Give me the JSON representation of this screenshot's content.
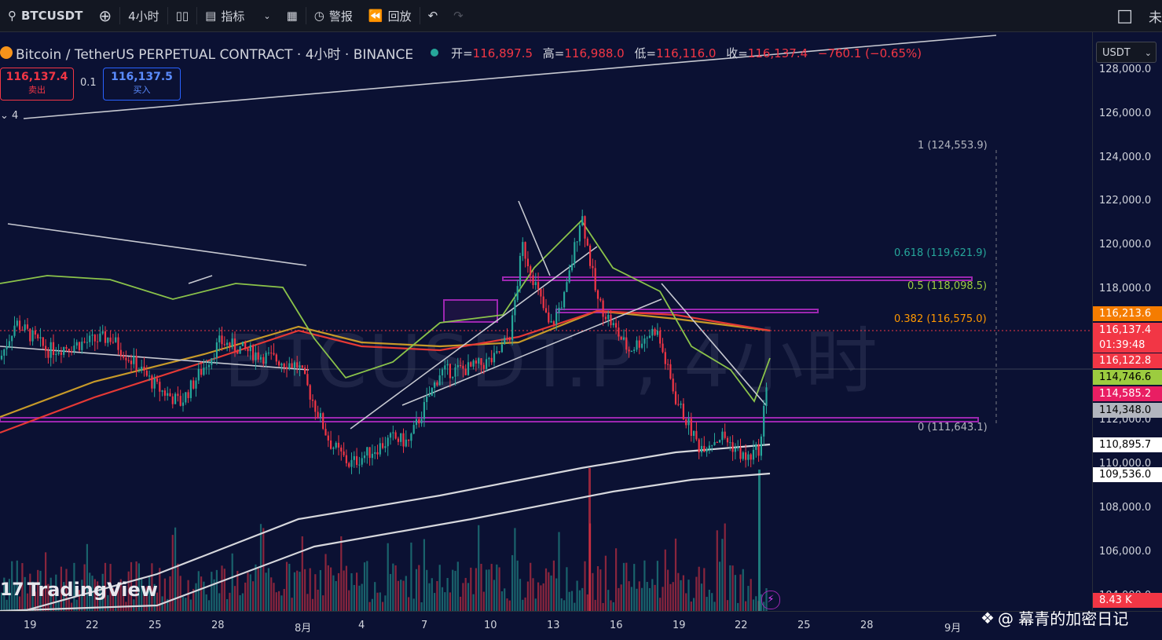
{
  "toolbar": {
    "symbol": "BTCUSDT",
    "interval": "4小时",
    "indicators_label": "指标",
    "alert_label": "警报",
    "replay_label": "回放",
    "right_label": "未"
  },
  "legend": {
    "title": "Bitcoin / TetherUS PERPETUAL CONTRACT · 4小时 · BINANCE",
    "open_label": "开=",
    "open": "116,897.5",
    "high_label": "高=",
    "high": "116,988.0",
    "low_label": "低=",
    "low": "116,116.0",
    "close_label": "收=",
    "close": "116,137.4",
    "change": "−760.1 (−0.65%)"
  },
  "trade": {
    "sell_price": "116,137.4",
    "sell_label": "卖出",
    "spread": "0.1",
    "buy_price": "116,137.5",
    "buy_label": "买入"
  },
  "collapsed_count": "4",
  "currency_select": "USDT",
  "price_ticks": [
    "128,000.0",
    "126,000.0",
    "124,000.0",
    "122,000.0",
    "120,000.0",
    "118,000.0",
    "116,000.0",
    "114,000.0",
    "112,000.0",
    "110,000.0",
    "108,000.0",
    "106,000.0",
    "104,000.0"
  ],
  "price_tags": [
    {
      "value": "116,213.6",
      "color": "#f57c00"
    },
    {
      "value": "116,137.4",
      "color": "#f23645"
    },
    {
      "value": "01:39:48",
      "color": "#f23645"
    },
    {
      "value": "116,122.8",
      "color": "#f23645"
    },
    {
      "value": "114,746.6",
      "color": "#9ccc3f"
    },
    {
      "value": "114,585.2",
      "color": "#e91e63"
    },
    {
      "value": "114,348.0",
      "color": "#787b86"
    },
    {
      "value": "110,895.7",
      "color": "#ffffff"
    },
    {
      "value": "109,536.0",
      "color": "#ffffff"
    },
    {
      "value": "8.43 K",
      "color": "#f23645"
    }
  ],
  "fib_levels": [
    {
      "label": "1 (124,553.9)",
      "color": "#b2b5be"
    },
    {
      "label": "0.618 (119,621.9)",
      "color": "#26a69a"
    },
    {
      "label": "0.5 (118,098.5)",
      "color": "#9ccc3f"
    },
    {
      "label": "0.382 (116,575.0)",
      "color": "#ff9800"
    },
    {
      "label": "0 (111,643.1)",
      "color": "#b2b5be"
    }
  ],
  "time_labels": [
    "19",
    "22",
    "25",
    "28",
    "8月",
    "4",
    "7",
    "10",
    "13",
    "16",
    "19",
    "22",
    "25",
    "28",
    "9月"
  ],
  "watermark": "BTCUSDT.P, 4小时",
  "logo": "TradingView",
  "author": "@ 幕青的加密日记",
  "colors": {
    "up": "#26a69a",
    "down": "#f23645",
    "ma_green": "#8bc34a",
    "ma_red": "#e53935",
    "ma_orange": "#c79a29",
    "zone": "#9c27b0"
  }
}
